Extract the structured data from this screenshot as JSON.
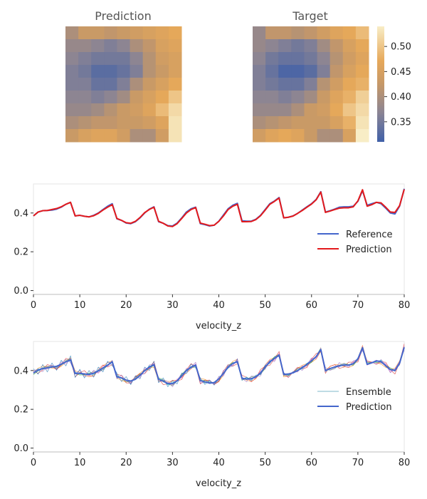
{
  "chart_data": [
    {
      "type": "heatmap",
      "title": "Prediction",
      "rows": 9,
      "cols": 9,
      "values": [
        [
          0.4,
          0.43,
          0.43,
          0.42,
          0.43,
          0.44,
          0.45,
          0.46,
          0.47
        ],
        [
          0.38,
          0.38,
          0.37,
          0.36,
          0.37,
          0.4,
          0.42,
          0.45,
          0.46
        ],
        [
          0.37,
          0.36,
          0.35,
          0.35,
          0.35,
          0.37,
          0.41,
          0.44,
          0.45
        ],
        [
          0.36,
          0.35,
          0.33,
          0.33,
          0.34,
          0.36,
          0.41,
          0.43,
          0.45
        ],
        [
          0.36,
          0.36,
          0.34,
          0.34,
          0.36,
          0.4,
          0.43,
          0.45,
          0.47
        ],
        [
          0.37,
          0.37,
          0.36,
          0.37,
          0.39,
          0.43,
          0.45,
          0.47,
          0.5
        ],
        [
          0.38,
          0.38,
          0.39,
          0.41,
          0.43,
          0.44,
          0.46,
          0.49,
          0.52
        ],
        [
          0.4,
          0.41,
          0.42,
          0.42,
          0.43,
          0.43,
          0.44,
          0.46,
          0.53
        ],
        [
          0.43,
          0.45,
          0.46,
          0.46,
          0.44,
          0.4,
          0.4,
          0.44,
          0.53
        ]
      ]
    },
    {
      "type": "heatmap",
      "title": "Target",
      "rows": 9,
      "cols": 9,
      "values": [
        [
          0.38,
          0.42,
          0.42,
          0.41,
          0.42,
          0.44,
          0.46,
          0.47,
          0.49
        ],
        [
          0.38,
          0.37,
          0.36,
          0.35,
          0.36,
          0.39,
          0.42,
          0.45,
          0.47
        ],
        [
          0.37,
          0.35,
          0.34,
          0.34,
          0.35,
          0.37,
          0.41,
          0.44,
          0.46
        ],
        [
          0.36,
          0.34,
          0.32,
          0.32,
          0.33,
          0.36,
          0.42,
          0.45,
          0.47
        ],
        [
          0.36,
          0.35,
          0.34,
          0.34,
          0.36,
          0.41,
          0.44,
          0.47,
          0.48
        ],
        [
          0.37,
          0.37,
          0.36,
          0.37,
          0.39,
          0.43,
          0.46,
          0.48,
          0.51
        ],
        [
          0.38,
          0.38,
          0.38,
          0.4,
          0.43,
          0.44,
          0.47,
          0.5,
          0.52
        ],
        [
          0.4,
          0.41,
          0.42,
          0.43,
          0.43,
          0.43,
          0.45,
          0.48,
          0.53
        ],
        [
          0.44,
          0.46,
          0.47,
          0.46,
          0.43,
          0.4,
          0.4,
          0.45,
          0.54
        ]
      ]
    },
    {
      "type": "colorbar",
      "vmin": 0.31,
      "vmax": 0.54,
      "ticks": [
        0.35,
        0.4,
        0.45,
        0.5
      ],
      "tick_labels": [
        "0.35",
        "0.40",
        "0.45",
        "0.50"
      ],
      "colors": {
        "low": "#4060a8",
        "mid": "#e0a45c",
        "high": "#f7e7b8"
      }
    },
    {
      "type": "line",
      "xlabel": "velocity_z",
      "xlim": [
        0,
        80
      ],
      "ylim": [
        -0.02,
        0.55
      ],
      "xticks": [
        0,
        10,
        20,
        30,
        40,
        50,
        60,
        70,
        80
      ],
      "xtick_labels": [
        "0",
        "10",
        "20",
        "30",
        "40",
        "50",
        "60",
        "70",
        "80"
      ],
      "yticks": [
        0.0,
        0.2,
        0.4
      ],
      "ytick_labels": [
        "0.0",
        "0.2",
        "0.4"
      ],
      "legend_position": "right",
      "series": [
        {
          "name": "Reference",
          "color": "#4466cc",
          "values": [
            0.385,
            0.405,
            0.412,
            0.413,
            0.415,
            0.42,
            0.43,
            0.445,
            0.455,
            0.385,
            0.388,
            0.383,
            0.38,
            0.388,
            0.4,
            0.418,
            0.435,
            0.448,
            0.37,
            0.362,
            0.348,
            0.345,
            0.355,
            0.375,
            0.4,
            0.42,
            0.432,
            0.355,
            0.347,
            0.335,
            0.333,
            0.348,
            0.375,
            0.405,
            0.422,
            0.43,
            0.345,
            0.34,
            0.333,
            0.337,
            0.358,
            0.39,
            0.422,
            0.44,
            0.45,
            0.36,
            0.358,
            0.358,
            0.368,
            0.388,
            0.418,
            0.448,
            0.462,
            0.48,
            0.375,
            0.378,
            0.385,
            0.398,
            0.415,
            0.432,
            0.448,
            0.47,
            0.51,
            0.405,
            0.412,
            0.42,
            0.43,
            0.432,
            0.432,
            0.435,
            0.46,
            0.515,
            0.44,
            0.448,
            0.455,
            0.448,
            0.425,
            0.4,
            0.395,
            0.435,
            0.525
          ]
        },
        {
          "name": "Prediction",
          "color": "#e31a1c",
          "values": [
            0.385,
            0.405,
            0.412,
            0.413,
            0.418,
            0.423,
            0.432,
            0.445,
            0.455,
            0.385,
            0.388,
            0.383,
            0.38,
            0.386,
            0.398,
            0.415,
            0.43,
            0.443,
            0.372,
            0.362,
            0.35,
            0.347,
            0.357,
            0.377,
            0.402,
            0.418,
            0.43,
            0.357,
            0.347,
            0.333,
            0.33,
            0.345,
            0.372,
            0.4,
            0.418,
            0.428,
            0.348,
            0.342,
            0.335,
            0.337,
            0.357,
            0.385,
            0.418,
            0.435,
            0.445,
            0.355,
            0.355,
            0.356,
            0.366,
            0.386,
            0.415,
            0.445,
            0.46,
            0.477,
            0.375,
            0.378,
            0.384,
            0.398,
            0.413,
            0.43,
            0.446,
            0.468,
            0.508,
            0.403,
            0.41,
            0.418,
            0.425,
            0.427,
            0.427,
            0.432,
            0.462,
            0.52,
            0.435,
            0.443,
            0.455,
            0.452,
            0.43,
            0.405,
            0.403,
            0.438,
            0.522
          ]
        }
      ]
    },
    {
      "type": "line",
      "xlabel": "velocity_z",
      "xlim": [
        0,
        80
      ],
      "ylim": [
        -0.02,
        0.55
      ],
      "xticks": [
        0,
        10,
        20,
        30,
        40,
        50,
        60,
        70,
        80
      ],
      "xtick_labels": [
        "0",
        "10",
        "20",
        "30",
        "40",
        "50",
        "60",
        "70",
        "80"
      ],
      "yticks": [
        0.0,
        0.2,
        0.4
      ],
      "ytick_labels": [
        "0.0",
        "0.2",
        "0.4"
      ],
      "legend_position": "right",
      "legend": [
        "Ensemble",
        "Prediction"
      ],
      "ensemble_colors": [
        "#ff7f0e",
        "#2ca02c",
        "#d62728",
        "#9467bd",
        "#17becf",
        "#bcbd22",
        "#1f77b4",
        "#e377c2"
      ],
      "ensemble_noise": [
        0.013,
        -0.009,
        0.018,
        -0.016,
        0.007,
        -0.004,
        0.021,
        -0.012
      ],
      "series": [
        {
          "name": "Prediction",
          "color": "#4466cc",
          "values": [
            0.388,
            0.402,
            0.41,
            0.414,
            0.418,
            0.422,
            0.432,
            0.445,
            0.455,
            0.385,
            0.386,
            0.382,
            0.38,
            0.386,
            0.398,
            0.413,
            0.428,
            0.445,
            0.368,
            0.362,
            0.35,
            0.346,
            0.355,
            0.375,
            0.4,
            0.418,
            0.43,
            0.355,
            0.345,
            0.333,
            0.332,
            0.347,
            0.372,
            0.4,
            0.418,
            0.428,
            0.348,
            0.342,
            0.335,
            0.338,
            0.357,
            0.385,
            0.418,
            0.436,
            0.446,
            0.36,
            0.356,
            0.358,
            0.367,
            0.388,
            0.418,
            0.445,
            0.462,
            0.48,
            0.38,
            0.382,
            0.388,
            0.4,
            0.415,
            0.432,
            0.45,
            0.472,
            0.508,
            0.4,
            0.41,
            0.418,
            0.425,
            0.428,
            0.428,
            0.435,
            0.46,
            0.518,
            0.432,
            0.44,
            0.45,
            0.446,
            0.425,
            0.405,
            0.4,
            0.438,
            0.52
          ]
        }
      ]
    }
  ]
}
